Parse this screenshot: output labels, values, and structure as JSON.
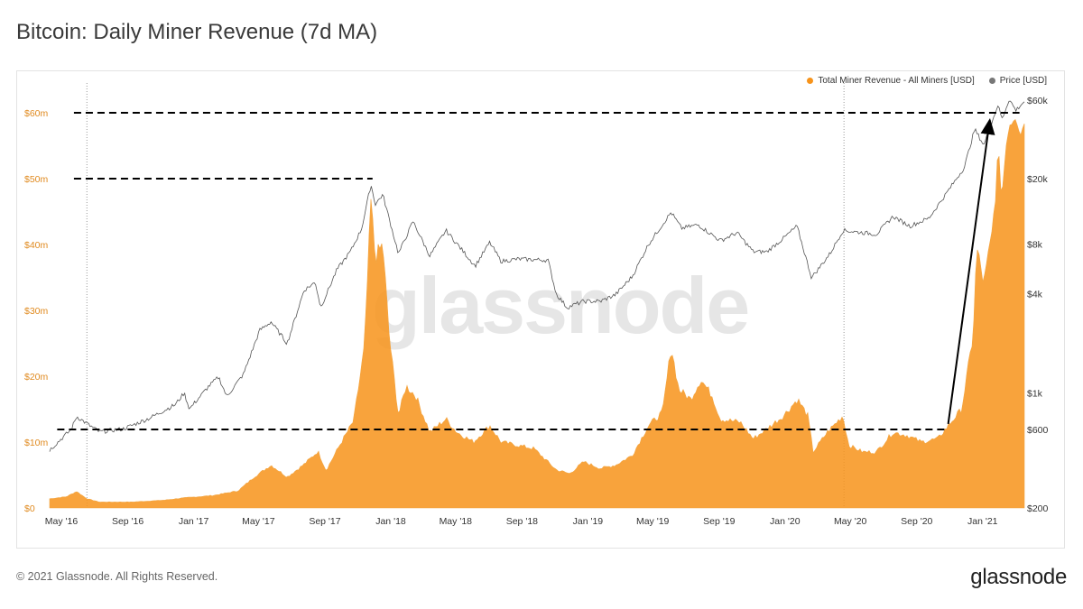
{
  "title": "Bitcoin: Daily Miner Revenue (7d MA)",
  "footer": "© 2021 Glassnode. All Rights Reserved.",
  "brand": "glassnode",
  "watermark": "glassnode",
  "colors": {
    "revenue": "#f7931a",
    "price": "#555555",
    "left_axis": "#e08a1f"
  },
  "legend": [
    {
      "label": "Total Miner Revenue - All Miners [USD]",
      "color": "#f7931a"
    },
    {
      "label": "Price [USD]",
      "color": "#777777"
    }
  ],
  "chart_data": {
    "type": "area",
    "x_ticks": [
      "May '16",
      "Sep '16",
      "Jan '17",
      "May '17",
      "Sep '17",
      "Jan '18",
      "May '18",
      "Sep '18",
      "Jan '19",
      "May '19",
      "Sep '19",
      "Jan '20",
      "May '20",
      "Sep '20",
      "Jan '21"
    ],
    "y_left_ticks": [
      "$0",
      "$10m",
      "$20m",
      "$30m",
      "$40m",
      "$50m",
      "$60m"
    ],
    "y_left_lim": [
      0,
      60
    ],
    "y_right_ticks": [
      "$200",
      "$600",
      "$1k",
      "$4k",
      "$8k",
      "$20k",
      "$60k"
    ],
    "y_right_scale": "log",
    "x_range": [
      "2016-05-01",
      "2021-04-10"
    ],
    "vertical_markers": [
      "2016-07-09",
      "2020-05-11"
    ],
    "series": [
      {
        "name": "Total Miner Revenue - All Miners [USD]",
        "axis": "left",
        "unit": "USD millions",
        "points": [
          [
            "2016-05-01",
            1.4
          ],
          [
            "2016-06-01",
            1.7
          ],
          [
            "2016-06-20",
            2.5
          ],
          [
            "2016-07-09",
            1.4
          ],
          [
            "2016-08-01",
            0.9
          ],
          [
            "2016-10-01",
            0.9
          ],
          [
            "2016-12-01",
            1.2
          ],
          [
            "2017-01-01",
            1.5
          ],
          [
            "2017-03-01",
            1.9
          ],
          [
            "2017-04-15",
            2.6
          ],
          [
            "2017-05-15",
            4.7
          ],
          [
            "2017-06-15",
            6.5
          ],
          [
            "2017-07-15",
            4.7
          ],
          [
            "2017-08-15",
            6.6
          ],
          [
            "2017-09-10",
            8.6
          ],
          [
            "2017-09-25",
            5.7
          ],
          [
            "2017-10-20",
            9.5
          ],
          [
            "2017-11-15",
            13.2
          ],
          [
            "2017-12-05",
            24.5
          ],
          [
            "2017-12-17",
            46.5
          ],
          [
            "2017-12-25",
            38.0
          ],
          [
            "2018-01-08",
            40.0
          ],
          [
            "2018-01-20",
            26.0
          ],
          [
            "2018-02-06",
            14.0
          ],
          [
            "2018-02-20",
            18.5
          ],
          [
            "2018-03-10",
            17.0
          ],
          [
            "2018-04-05",
            11.5
          ],
          [
            "2018-05-05",
            13.5
          ],
          [
            "2018-05-25",
            11.5
          ],
          [
            "2018-06-25",
            10.0
          ],
          [
            "2018-07-25",
            12.5
          ],
          [
            "2018-08-15",
            10.0
          ],
          [
            "2018-09-15",
            9.5
          ],
          [
            "2018-10-15",
            9.0
          ],
          [
            "2018-11-25",
            5.8
          ],
          [
            "2018-12-20",
            5.2
          ],
          [
            "2019-01-15",
            7.0
          ],
          [
            "2019-02-15",
            6.0
          ],
          [
            "2019-03-15",
            6.5
          ],
          [
            "2019-04-15",
            8.0
          ],
          [
            "2019-05-15",
            12.5
          ],
          [
            "2019-06-10",
            14.5
          ],
          [
            "2019-06-26",
            24.5
          ],
          [
            "2019-07-10",
            18.0
          ],
          [
            "2019-08-01",
            16.5
          ],
          [
            "2019-08-20",
            19.5
          ],
          [
            "2019-09-10",
            17.0
          ],
          [
            "2019-09-25",
            13.5
          ],
          [
            "2019-11-01",
            13.0
          ],
          [
            "2019-11-25",
            10.5
          ],
          [
            "2019-12-20",
            12.0
          ],
          [
            "2020-01-20",
            14.0
          ],
          [
            "2020-02-15",
            16.5
          ],
          [
            "2020-03-05",
            14.0
          ],
          [
            "2020-03-15",
            8.5
          ],
          [
            "2020-04-10",
            11.5
          ],
          [
            "2020-05-09",
            14.0
          ],
          [
            "2020-05-20",
            9.5
          ],
          [
            "2020-06-15",
            8.5
          ],
          [
            "2020-07-10",
            8.5
          ],
          [
            "2020-08-10",
            11.5
          ],
          [
            "2020-09-05",
            11.0
          ],
          [
            "2020-10-01",
            10.0
          ],
          [
            "2020-11-01",
            10.5
          ],
          [
            "2020-11-25",
            13.0
          ],
          [
            "2020-12-15",
            15.0
          ],
          [
            "2021-01-05",
            26.0
          ],
          [
            "2021-01-12",
            39.5
          ],
          [
            "2021-01-25",
            34.0
          ],
          [
            "2021-02-10",
            42.0
          ],
          [
            "2021-02-20",
            53.0
          ],
          [
            "2021-02-28",
            48.0
          ],
          [
            "2021-03-10",
            58.0
          ],
          [
            "2021-03-25",
            60.5
          ],
          [
            "2021-04-05",
            57.0
          ],
          [
            "2021-04-10",
            59.0
          ]
        ]
      },
      {
        "name": "Price [USD]",
        "axis": "right",
        "unit": "USD",
        "points": [
          [
            "2016-05-01",
            450
          ],
          [
            "2016-06-10",
            600
          ],
          [
            "2016-06-20",
            720
          ],
          [
            "2016-07-09",
            650
          ],
          [
            "2016-08-01",
            580
          ],
          [
            "2016-09-15",
            605
          ],
          [
            "2016-11-01",
            700
          ],
          [
            "2016-12-20",
            850
          ],
          [
            "2017-01-05",
            1000
          ],
          [
            "2017-01-15",
            800
          ],
          [
            "2017-02-20",
            1100
          ],
          [
            "2017-03-10",
            1250
          ],
          [
            "2017-03-25",
            950
          ],
          [
            "2017-04-25",
            1300
          ],
          [
            "2017-05-25",
            2400
          ],
          [
            "2017-06-15",
            2700
          ],
          [
            "2017-07-15",
            2000
          ],
          [
            "2017-08-15",
            4200
          ],
          [
            "2017-09-05",
            4700
          ],
          [
            "2017-09-15",
            3300
          ],
          [
            "2017-10-15",
            5600
          ],
          [
            "2017-11-10",
            7300
          ],
          [
            "2017-11-30",
            10000
          ],
          [
            "2017-12-17",
            18500
          ],
          [
            "2017-12-25",
            14000
          ],
          [
            "2018-01-08",
            16000
          ],
          [
            "2018-02-06",
            7000
          ],
          [
            "2018-03-05",
            11000
          ],
          [
            "2018-04-05",
            6800
          ],
          [
            "2018-05-05",
            9700
          ],
          [
            "2018-06-28",
            5900
          ],
          [
            "2018-07-25",
            8200
          ],
          [
            "2018-08-15",
            6300
          ],
          [
            "2018-09-15",
            6500
          ],
          [
            "2018-11-10",
            6400
          ],
          [
            "2018-11-25",
            4000
          ],
          [
            "2018-12-15",
            3300
          ],
          [
            "2019-01-15",
            3600
          ],
          [
            "2019-02-15",
            3600
          ],
          [
            "2019-03-15",
            3950
          ],
          [
            "2019-04-15",
            5100
          ],
          [
            "2019-05-15",
            8000
          ],
          [
            "2019-06-26",
            12500
          ],
          [
            "2019-07-15",
            10000
          ],
          [
            "2019-08-15",
            10500
          ],
          [
            "2019-09-25",
            8400
          ],
          [
            "2019-10-26",
            9400
          ],
          [
            "2019-11-25",
            7200
          ],
          [
            "2019-12-20",
            7200
          ],
          [
            "2020-01-20",
            8700
          ],
          [
            "2020-02-14",
            10300
          ],
          [
            "2020-03-12",
            5000
          ],
          [
            "2020-04-15",
            7000
          ],
          [
            "2020-05-09",
            9700
          ],
          [
            "2020-06-15",
            9400
          ],
          [
            "2020-07-10",
            9200
          ],
          [
            "2020-08-10",
            11800
          ],
          [
            "2020-09-10",
            10300
          ],
          [
            "2020-10-15",
            11500
          ],
          [
            "2020-11-15",
            16000
          ],
          [
            "2020-12-20",
            23500
          ],
          [
            "2021-01-08",
            40000
          ],
          [
            "2021-01-25",
            32000
          ],
          [
            "2021-02-20",
            56000
          ],
          [
            "2021-02-28",
            46000
          ],
          [
            "2021-03-13",
            61000
          ],
          [
            "2021-03-25",
            52000
          ],
          [
            "2021-04-10",
            59000
          ]
        ]
      }
    ],
    "annotations": [
      {
        "type": "dashed-hline",
        "level": "$60m",
        "from": "2016-06-15",
        "to": "2021-04-01"
      },
      {
        "type": "dashed-hline",
        "level": "$50m",
        "from": "2016-06-15",
        "to": "2017-12-20"
      },
      {
        "type": "dashed-hline",
        "level": "$600",
        "from": "2016-05-15",
        "to": "2020-11-15"
      },
      {
        "type": "arrow",
        "from": [
          "2020-11-20",
          "$600"
        ],
        "to": [
          "2021-02-05",
          "$60m"
        ]
      }
    ]
  }
}
